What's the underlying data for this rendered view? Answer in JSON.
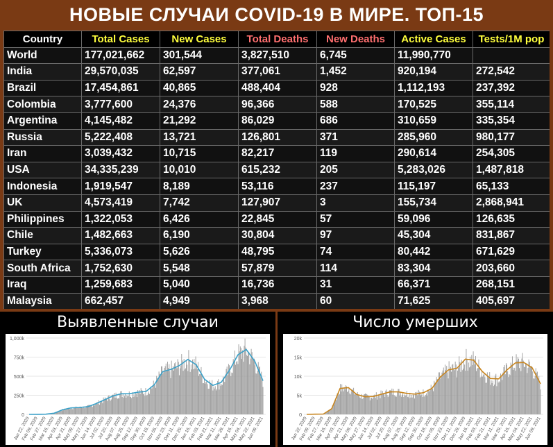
{
  "title": "НОВЫЕ СЛУЧАИ COVID-19 В МИРЕ. ТОП-15",
  "table": {
    "headers": [
      "Country",
      "Total Cases",
      "New Cases",
      "Total Deaths",
      "New Deaths",
      "Active Cases",
      "Tests/1M pop"
    ],
    "rows": [
      [
        "World",
        "177,021,662",
        "301,544",
        "3,827,510",
        "6,745",
        "11,990,770",
        ""
      ],
      [
        "India",
        "29,570,035",
        "62,597",
        "377,061",
        "1,452",
        "920,194",
        "272,542"
      ],
      [
        "Brazil",
        "17,454,861",
        "40,865",
        "488,404",
        "928",
        "1,112,193",
        "237,392"
      ],
      [
        "Colombia",
        "3,777,600",
        "24,376",
        "96,366",
        "588",
        "170,525",
        "355,114"
      ],
      [
        "Argentina",
        "4,145,482",
        "21,292",
        "86,029",
        "686",
        "310,659",
        "335,354"
      ],
      [
        "Russia",
        "5,222,408",
        "13,721",
        "126,801",
        "371",
        "285,960",
        "980,177"
      ],
      [
        "Iran",
        "3,039,432",
        "10,715",
        "82,217",
        "119",
        "290,614",
        "254,305"
      ],
      [
        "USA",
        "34,335,239",
        "10,010",
        "615,232",
        "205",
        "5,283,026",
        "1,487,818"
      ],
      [
        "Indonesia",
        "1,919,547",
        "8,189",
        "53,116",
        "237",
        "115,197",
        "65,133"
      ],
      [
        "UK",
        "4,573,419",
        "7,742",
        "127,907",
        "3",
        "155,734",
        "2,868,941"
      ],
      [
        "Philippines",
        "1,322,053",
        "6,426",
        "22,845",
        "57",
        "59,096",
        "126,635"
      ],
      [
        "Chile",
        "1,482,663",
        "6,190",
        "30,804",
        "97",
        "45,304",
        "831,867"
      ],
      [
        "Turkey",
        "5,336,073",
        "5,626",
        "48,795",
        "74",
        "80,442",
        "671,629"
      ],
      [
        "South Africa",
        "1,752,630",
        "5,548",
        "57,879",
        "114",
        "83,304",
        "203,660"
      ],
      [
        "Iraq",
        "1,259,683",
        "5,040",
        "16,736",
        "31",
        "66,371",
        "268,151"
      ],
      [
        "Malaysia",
        "662,457",
        "4,949",
        "3,968",
        "60",
        "71,625",
        "405,697"
      ]
    ]
  },
  "colors": {
    "background": "#7a3a14",
    "header_yellow": "#ffff3c",
    "header_red": "#ff6f6f",
    "cases_line": "#3aa0c8",
    "deaths_line": "#c8851e",
    "bars": "#9a9a9a"
  },
  "chart_data": [
    {
      "type": "bar",
      "title": "Выявленные случаи",
      "xlabel": "",
      "ylabel": "",
      "ylim": [
        0,
        1000000
      ],
      "y_ticks": [
        "0",
        "250k",
        "500k",
        "750k",
        "1,000k"
      ],
      "x_ticks": [
        "Jan 22, 2020",
        "Feb 09, 2020",
        "Feb 27, 2020",
        "Mar 16, 2020",
        "Apr 03, 2020",
        "Apr 21, 2020",
        "May 09, 2020",
        "May 27, 2020",
        "Jun 14, 2020",
        "Jul 02, 2020",
        "Jul 20, 2020",
        "Aug 07, 2020",
        "Aug 25, 2020",
        "Sep 12, 2020",
        "Sep 30, 2020",
        "Oct 18, 2020",
        "Nov 05, 2020",
        "Nov 23, 2020",
        "Dec 11, 2020",
        "Dec 29, 2020",
        "Jan 16, 2021",
        "Feb 03, 2021",
        "Feb 21, 2021",
        "Mar 11, 2021",
        "Mar 29, 2021",
        "Apr 16, 2021",
        "May 04, 2021",
        "May 22, 2021",
        "Jun 09, 2021"
      ],
      "series": [
        {
          "values": [
            0,
            1000,
            3000,
            15000,
            60000,
            85000,
            90000,
            100000,
            140000,
            190000,
            240000,
            270000,
            270000,
            290000,
            300000,
            390000,
            560000,
            590000,
            640000,
            720000,
            650000,
            460000,
            380000,
            420000,
            580000,
            780000,
            850000,
            700000,
            440000
          ]
        }
      ]
    },
    {
      "type": "bar",
      "title": "Число умерших",
      "xlabel": "",
      "ylabel": "",
      "ylim": [
        0,
        20000
      ],
      "y_ticks": [
        "0",
        "5k",
        "10k",
        "15k",
        "20k"
      ],
      "x_ticks": [
        "Jan 22, 2020",
        "Feb 09, 2020",
        "Feb 27, 2020",
        "Mar 16, 2020",
        "Apr 03, 2020",
        "Apr 21, 2020",
        "May 09, 2020",
        "May 27, 2020",
        "Jun 14, 2020",
        "Jul 02, 2020",
        "Jul 20, 2020",
        "Aug 07, 2020",
        "Aug 25, 2020",
        "Sep 12, 2020",
        "Sep 30, 2020",
        "Oct 18, 2020",
        "Nov 05, 2020",
        "Nov 23, 2020",
        "Dec 11, 2020",
        "Dec 29, 2020",
        "Jan 16, 2021",
        "Feb 03, 2021",
        "Feb 21, 2021",
        "Mar 11, 2021",
        "Mar 29, 2021",
        "Apr 16, 2021",
        "May 04, 2021",
        "May 22, 2021",
        "Jun 09, 2021"
      ],
      "series": [
        {
          "values": [
            0,
            50,
            100,
            1500,
            6800,
            7000,
            5200,
            4600,
            4700,
            5300,
            5900,
            5900,
            5500,
            5300,
            5700,
            6800,
            9800,
            11700,
            12100,
            14500,
            14200,
            11300,
            9400,
            9300,
            11700,
            13500,
            13600,
            12200,
            8000
          ]
        }
      ]
    }
  ]
}
